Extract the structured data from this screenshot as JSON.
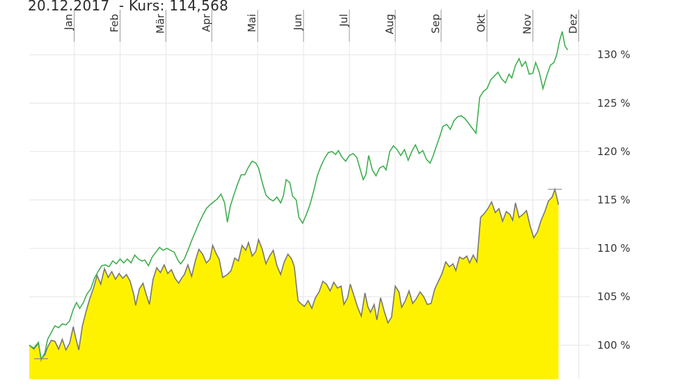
{
  "header": {
    "text": "20.12.2017  - Kurs: 114,568"
  },
  "colors": {
    "fund_fill": "#fff200",
    "fund_line": "#777777",
    "benchmark_line": "#3fae4f",
    "grid": "#e6e6e6"
  },
  "chart_data": {
    "type": "area",
    "xlabel": "",
    "ylabel": "",
    "x_unit": "month_of_year",
    "xlim": [
      0.02,
      12.25
    ],
    "ylim": [
      96.5,
      133.5
    ],
    "months": [
      "Jan",
      "Feb",
      "Mär",
      "Apr",
      "Mai",
      "Jun",
      "Jul",
      "Aug",
      "Sep",
      "Okt",
      "Nov",
      "Dez"
    ],
    "y_ticks": [
      100,
      105,
      110,
      115,
      120,
      125,
      130
    ],
    "y_tick_labels": [
      "100 %",
      "105 %",
      "110 %",
      "115 %",
      "120 %",
      "125 %",
      "130 %"
    ],
    "grid": true,
    "series": [
      {
        "kind": "area",
        "points": [
          [
            0.02,
            100.0
          ],
          [
            0.12,
            99.6
          ],
          [
            0.22,
            100.2
          ],
          [
            0.28,
            98.6
          ],
          [
            0.36,
            99.0
          ],
          [
            0.42,
            99.8
          ],
          [
            0.5,
            100.5
          ],
          [
            0.58,
            100.4
          ],
          [
            0.66,
            99.6
          ],
          [
            0.74,
            100.6
          ],
          [
            0.82,
            99.5
          ],
          [
            0.9,
            100.2
          ],
          [
            0.98,
            101.9
          ],
          [
            1.03,
            100.8
          ],
          [
            1.1,
            99.5
          ],
          [
            1.18,
            102.0
          ],
          [
            1.26,
            103.5
          ],
          [
            1.34,
            104.8
          ],
          [
            1.42,
            105.9
          ],
          [
            1.5,
            107.2
          ],
          [
            1.58,
            106.3
          ],
          [
            1.66,
            107.9
          ],
          [
            1.74,
            107.0
          ],
          [
            1.82,
            107.6
          ],
          [
            1.9,
            106.8
          ],
          [
            1.98,
            107.4
          ],
          [
            2.06,
            106.9
          ],
          [
            2.14,
            107.3
          ],
          [
            2.22,
            106.6
          ],
          [
            2.3,
            105.2
          ],
          [
            2.34,
            104.1
          ],
          [
            2.42,
            105.8
          ],
          [
            2.5,
            106.4
          ],
          [
            2.56,
            105.4
          ],
          [
            2.64,
            104.2
          ],
          [
            2.72,
            106.8
          ],
          [
            2.8,
            108.0
          ],
          [
            2.88,
            107.5
          ],
          [
            2.96,
            108.3
          ],
          [
            3.04,
            107.4
          ],
          [
            3.12,
            107.8
          ],
          [
            3.2,
            106.9
          ],
          [
            3.28,
            106.4
          ],
          [
            3.34,
            106.9
          ],
          [
            3.4,
            107.3
          ],
          [
            3.48,
            108.3
          ],
          [
            3.56,
            107.1
          ],
          [
            3.64,
            108.7
          ],
          [
            3.72,
            109.9
          ],
          [
            3.8,
            109.4
          ],
          [
            3.88,
            108.5
          ],
          [
            3.96,
            108.9
          ],
          [
            4.02,
            110.3
          ],
          [
            4.1,
            109.4
          ],
          [
            4.16,
            108.9
          ],
          [
            4.24,
            107.0
          ],
          [
            4.34,
            107.3
          ],
          [
            4.42,
            107.7
          ],
          [
            4.5,
            109.0
          ],
          [
            4.58,
            108.7
          ],
          [
            4.66,
            110.3
          ],
          [
            4.74,
            109.8
          ],
          [
            4.8,
            110.6
          ],
          [
            4.88,
            109.2
          ],
          [
            4.96,
            109.7
          ],
          [
            5.02,
            110.9
          ],
          [
            5.1,
            109.9
          ],
          [
            5.18,
            108.4
          ],
          [
            5.26,
            109.2
          ],
          [
            5.34,
            109.8
          ],
          [
            5.42,
            108.2
          ],
          [
            5.5,
            107.3
          ],
          [
            5.58,
            108.6
          ],
          [
            5.66,
            109.4
          ],
          [
            5.74,
            108.9
          ],
          [
            5.8,
            108.1
          ],
          [
            5.88,
            104.6
          ],
          [
            5.94,
            104.3
          ],
          [
            6.02,
            104.0
          ],
          [
            6.1,
            104.6
          ],
          [
            6.18,
            103.8
          ],
          [
            6.26,
            104.9
          ],
          [
            6.34,
            105.5
          ],
          [
            6.42,
            106.6
          ],
          [
            6.5,
            106.3
          ],
          [
            6.58,
            105.6
          ],
          [
            6.66,
            106.5
          ],
          [
            6.74,
            105.9
          ],
          [
            6.82,
            106.1
          ],
          [
            6.88,
            104.2
          ],
          [
            6.96,
            104.9
          ],
          [
            7.02,
            106.3
          ],
          [
            7.1,
            105.1
          ],
          [
            7.18,
            103.9
          ],
          [
            7.26,
            103.0
          ],
          [
            7.34,
            105.4
          ],
          [
            7.4,
            104.0
          ],
          [
            7.46,
            103.4
          ],
          [
            7.54,
            104.2
          ],
          [
            7.6,
            102.6
          ],
          [
            7.68,
            104.9
          ],
          [
            7.76,
            103.5
          ],
          [
            7.84,
            102.3
          ],
          [
            7.92,
            102.9
          ],
          [
            8.0,
            106.1
          ],
          [
            8.08,
            105.5
          ],
          [
            8.14,
            103.9
          ],
          [
            8.22,
            104.6
          ],
          [
            8.3,
            105.6
          ],
          [
            8.38,
            104.3
          ],
          [
            8.46,
            104.8
          ],
          [
            8.54,
            105.5
          ],
          [
            8.62,
            105.0
          ],
          [
            8.7,
            104.2
          ],
          [
            8.78,
            104.3
          ],
          [
            8.86,
            105.8
          ],
          [
            8.94,
            106.6
          ],
          [
            9.02,
            107.4
          ],
          [
            9.1,
            108.6
          ],
          [
            9.18,
            108.1
          ],
          [
            9.26,
            108.4
          ],
          [
            9.32,
            107.7
          ],
          [
            9.4,
            109.1
          ],
          [
            9.48,
            108.9
          ],
          [
            9.56,
            109.2
          ],
          [
            9.62,
            108.5
          ],
          [
            9.7,
            109.3
          ],
          [
            9.78,
            108.6
          ],
          [
            9.86,
            113.2
          ],
          [
            9.94,
            113.6
          ],
          [
            10.02,
            114.1
          ],
          [
            10.1,
            114.8
          ],
          [
            10.18,
            113.7
          ],
          [
            10.26,
            114.1
          ],
          [
            10.34,
            112.8
          ],
          [
            10.42,
            113.8
          ],
          [
            10.5,
            113.5
          ],
          [
            10.56,
            112.9
          ],
          [
            10.62,
            114.7
          ],
          [
            10.7,
            113.2
          ],
          [
            10.78,
            113.5
          ],
          [
            10.86,
            113.9
          ],
          [
            10.94,
            112.3
          ],
          [
            11.02,
            111.1
          ],
          [
            11.1,
            111.7
          ],
          [
            11.18,
            112.9
          ],
          [
            11.26,
            113.8
          ],
          [
            11.34,
            114.9
          ],
          [
            11.42,
            115.3
          ],
          [
            11.48,
            116.1
          ],
          [
            11.56,
            114.5
          ]
        ]
      },
      {
        "kind": "line",
        "points": [
          [
            0.02,
            100.0
          ],
          [
            0.12,
            99.7
          ],
          [
            0.22,
            100.3
          ],
          [
            0.28,
            98.5
          ],
          [
            0.36,
            99.2
          ],
          [
            0.42,
            100.6
          ],
          [
            0.5,
            101.3
          ],
          [
            0.58,
            102.0
          ],
          [
            0.66,
            101.8
          ],
          [
            0.74,
            102.2
          ],
          [
            0.82,
            102.1
          ],
          [
            0.9,
            102.5
          ],
          [
            0.98,
            103.7
          ],
          [
            1.05,
            104.4
          ],
          [
            1.12,
            103.8
          ],
          [
            1.2,
            104.4
          ],
          [
            1.28,
            105.3
          ],
          [
            1.36,
            105.8
          ],
          [
            1.44,
            106.9
          ],
          [
            1.52,
            107.6
          ],
          [
            1.6,
            108.2
          ],
          [
            1.68,
            108.3
          ],
          [
            1.76,
            108.1
          ],
          [
            1.84,
            108.7
          ],
          [
            1.92,
            108.4
          ],
          [
            2.0,
            108.9
          ],
          [
            2.08,
            108.5
          ],
          [
            2.16,
            108.9
          ],
          [
            2.24,
            108.5
          ],
          [
            2.32,
            109.3
          ],
          [
            2.4,
            108.9
          ],
          [
            2.48,
            108.7
          ],
          [
            2.54,
            108.8
          ],
          [
            2.62,
            108.2
          ],
          [
            2.7,
            109.1
          ],
          [
            2.78,
            109.6
          ],
          [
            2.86,
            110.1
          ],
          [
            2.94,
            109.8
          ],
          [
            3.02,
            110.0
          ],
          [
            3.1,
            109.8
          ],
          [
            3.18,
            109.6
          ],
          [
            3.26,
            108.8
          ],
          [
            3.32,
            108.4
          ],
          [
            3.4,
            108.9
          ],
          [
            3.48,
            109.8
          ],
          [
            3.56,
            110.8
          ],
          [
            3.64,
            111.7
          ],
          [
            3.72,
            112.6
          ],
          [
            3.8,
            113.4
          ],
          [
            3.88,
            114.1
          ],
          [
            3.96,
            114.5
          ],
          [
            4.04,
            114.8
          ],
          [
            4.12,
            115.1
          ],
          [
            4.2,
            115.6
          ],
          [
            4.28,
            114.7
          ],
          [
            4.34,
            112.7
          ],
          [
            4.4,
            114.3
          ],
          [
            4.48,
            115.5
          ],
          [
            4.56,
            116.6
          ],
          [
            4.64,
            117.6
          ],
          [
            4.72,
            117.6
          ],
          [
            4.8,
            118.4
          ],
          [
            4.88,
            119.0
          ],
          [
            4.96,
            118.8
          ],
          [
            5.02,
            118.3
          ],
          [
            5.1,
            116.8
          ],
          [
            5.18,
            115.5
          ],
          [
            5.26,
            115.1
          ],
          [
            5.34,
            114.9
          ],
          [
            5.42,
            115.3
          ],
          [
            5.5,
            114.7
          ],
          [
            5.56,
            115.4
          ],
          [
            5.62,
            117.1
          ],
          [
            5.7,
            116.8
          ],
          [
            5.76,
            115.4
          ],
          [
            5.84,
            115.0
          ],
          [
            5.9,
            113.2
          ],
          [
            5.98,
            112.6
          ],
          [
            6.06,
            113.5
          ],
          [
            6.14,
            114.5
          ],
          [
            6.22,
            115.9
          ],
          [
            6.3,
            117.5
          ],
          [
            6.38,
            118.5
          ],
          [
            6.46,
            119.3
          ],
          [
            6.54,
            119.9
          ],
          [
            6.62,
            120.0
          ],
          [
            6.7,
            119.7
          ],
          [
            6.76,
            120.1
          ],
          [
            6.84,
            119.4
          ],
          [
            6.92,
            119.0
          ],
          [
            7.0,
            119.6
          ],
          [
            7.08,
            119.8
          ],
          [
            7.16,
            119.4
          ],
          [
            7.24,
            118.1
          ],
          [
            7.3,
            117.1
          ],
          [
            7.36,
            117.6
          ],
          [
            7.42,
            119.6
          ],
          [
            7.5,
            118.1
          ],
          [
            7.58,
            117.5
          ],
          [
            7.66,
            118.3
          ],
          [
            7.74,
            118.5
          ],
          [
            7.8,
            118.1
          ],
          [
            7.88,
            120.0
          ],
          [
            7.96,
            120.6
          ],
          [
            8.04,
            120.2
          ],
          [
            8.12,
            119.6
          ],
          [
            8.2,
            120.2
          ],
          [
            8.28,
            119.1
          ],
          [
            8.36,
            120.0
          ],
          [
            8.44,
            120.7
          ],
          [
            8.52,
            119.8
          ],
          [
            8.6,
            120.1
          ],
          [
            8.68,
            119.2
          ],
          [
            8.76,
            118.8
          ],
          [
            8.82,
            119.5
          ],
          [
            8.9,
            120.6
          ],
          [
            8.98,
            121.7
          ],
          [
            9.04,
            122.6
          ],
          [
            9.12,
            122.8
          ],
          [
            9.2,
            122.3
          ],
          [
            9.28,
            123.2
          ],
          [
            9.36,
            123.6
          ],
          [
            9.44,
            123.7
          ],
          [
            9.52,
            123.4
          ],
          [
            9.6,
            122.9
          ],
          [
            9.68,
            122.4
          ],
          [
            9.76,
            121.9
          ],
          [
            9.84,
            125.6
          ],
          [
            9.92,
            126.2
          ],
          [
            10.0,
            126.5
          ],
          [
            10.08,
            127.4
          ],
          [
            10.16,
            127.8
          ],
          [
            10.24,
            128.2
          ],
          [
            10.32,
            127.5
          ],
          [
            10.4,
            127.1
          ],
          [
            10.48,
            128.0
          ],
          [
            10.54,
            127.6
          ],
          [
            10.62,
            128.9
          ],
          [
            10.7,
            129.6
          ],
          [
            10.76,
            128.8
          ],
          [
            10.84,
            129.3
          ],
          [
            10.92,
            128.0
          ],
          [
            11.0,
            128.1
          ],
          [
            11.06,
            129.2
          ],
          [
            11.14,
            128.2
          ],
          [
            11.22,
            126.5
          ],
          [
            11.3,
            127.8
          ],
          [
            11.38,
            128.9
          ],
          [
            11.46,
            129.2
          ],
          [
            11.52,
            130.0
          ],
          [
            11.58,
            131.4
          ],
          [
            11.64,
            132.4
          ],
          [
            11.7,
            130.9
          ],
          [
            11.76,
            130.5
          ]
        ]
      }
    ]
  }
}
